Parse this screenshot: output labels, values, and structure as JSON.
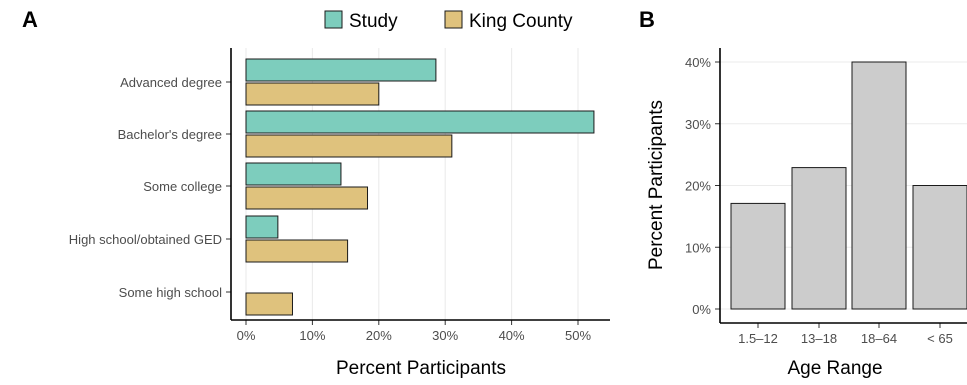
{
  "chart_data": [
    {
      "panel": "A",
      "type": "bar",
      "orientation": "horizontal",
      "categories": [
        "Advanced degree",
        "Bachelor's degree",
        "Some college",
        "High school/obtained GED",
        "Some high school"
      ],
      "series": [
        {
          "name": "Study",
          "color": "#7dcdbd",
          "values": [
            28.6,
            52.4,
            14.3,
            4.8,
            0
          ]
        },
        {
          "name": "King County",
          "color": "#dfc27d",
          "values": [
            20.0,
            31.0,
            18.3,
            15.3,
            7.0
          ]
        }
      ],
      "xlabel": "Percent Participants",
      "ylabel": "",
      "xlim": [
        0,
        55
      ],
      "xticks": [
        0,
        10,
        20,
        30,
        40,
        50
      ],
      "xtick_labels": [
        "0%",
        "10%",
        "20%",
        "30%",
        "40%",
        "50%"
      ],
      "grid": "vertical",
      "legend": "top"
    },
    {
      "panel": "B",
      "type": "bar",
      "categories": [
        "1.5–12",
        "13–18",
        "18–64",
        "< 65"
      ],
      "values": [
        17.1,
        22.9,
        40.0,
        20.0
      ],
      "color": "#cccccc",
      "xlabel": "Age Range",
      "ylabel": "Percent Participants",
      "ylim": [
        0,
        40
      ],
      "yticks": [
        0,
        10,
        20,
        30,
        40
      ],
      "ytick_labels": [
        "0%",
        "10%",
        "20%",
        "30%",
        "40%"
      ],
      "grid": "horizontal"
    }
  ]
}
